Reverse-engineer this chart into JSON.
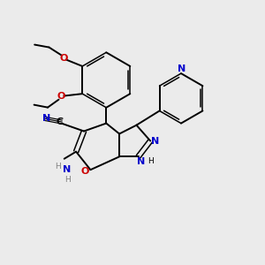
{
  "bg_color": "#ebebeb",
  "bond_color": "#000000",
  "n_color": "#0000cc",
  "o_color": "#cc0000",
  "text_color": "#000000",
  "figsize": [
    3.0,
    3.0
  ],
  "dpi": 100,
  "xlim": [
    0,
    10
  ],
  "ylim": [
    0,
    10
  ]
}
